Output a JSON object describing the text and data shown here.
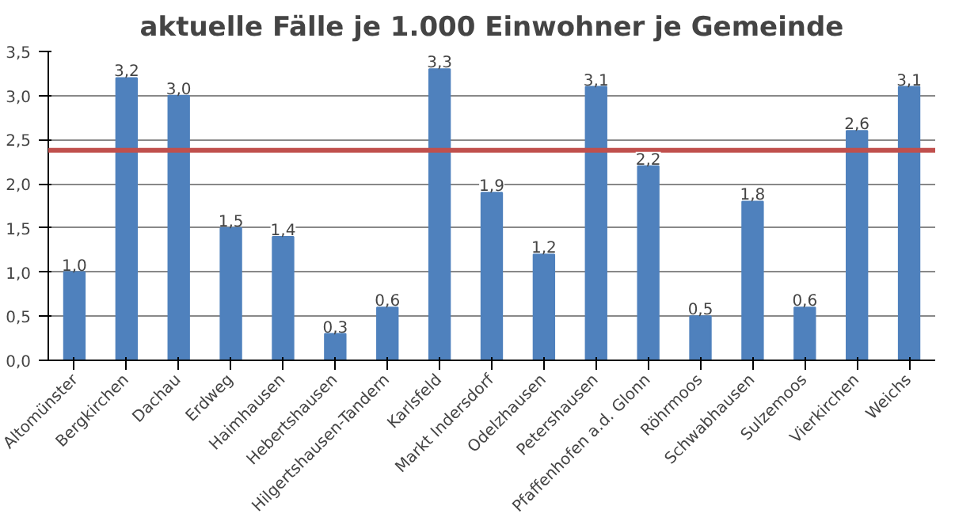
{
  "chart_data": {
    "type": "bar",
    "title": "aktuelle Fälle je 1.000 Einwohner je Gemeinde",
    "categories": [
      "Altomünster",
      "Bergkirchen",
      "Dachau",
      "Erdweg",
      "Haimhausen",
      "Hebertshausen",
      "Hilgertshausen-Tandern",
      "Karlsfeld",
      "Markt Indersdorf",
      "Odelzhausen",
      "Petershausen",
      "Pfaffenhofen a.d. Glonn",
      "Röhrmoos",
      "Schwabhausen",
      "Sulzemoos",
      "Vierkirchen",
      "Weichs"
    ],
    "values": [
      1.0,
      3.2,
      3.0,
      1.5,
      1.4,
      0.3,
      0.6,
      3.3,
      1.9,
      1.2,
      3.1,
      2.2,
      0.5,
      1.8,
      0.6,
      2.6,
      3.1
    ],
    "value_labels": [
      "1,0",
      "3,2",
      "3,0",
      "1,5",
      "1,4",
      "0,3",
      "0,6",
      "3,3",
      "1,9",
      "1,2",
      "3,1",
      "2,2",
      "0,5",
      "1,8",
      "0,6",
      "2,6",
      "3,1"
    ],
    "color": "#4f81bd",
    "ylim": [
      0,
      3.5
    ],
    "yticks": [
      {
        "value": 0,
        "label": "0,0"
      },
      {
        "value": 0.5,
        "label": "0,5"
      },
      {
        "value": 1,
        "label": "1,0"
      },
      {
        "value": 1.5,
        "label": "1,5"
      },
      {
        "value": 2,
        "label": "2,0"
      },
      {
        "value": 2.5,
        "label": "2,5"
      },
      {
        "value": 3,
        "label": "3,0"
      },
      {
        "value": 3.5,
        "label": "3,5"
      }
    ],
    "grid": "y",
    "ref_lines": [
      {
        "axis": "y",
        "value": 2.38,
        "color": "#c0504d"
      }
    ]
  }
}
